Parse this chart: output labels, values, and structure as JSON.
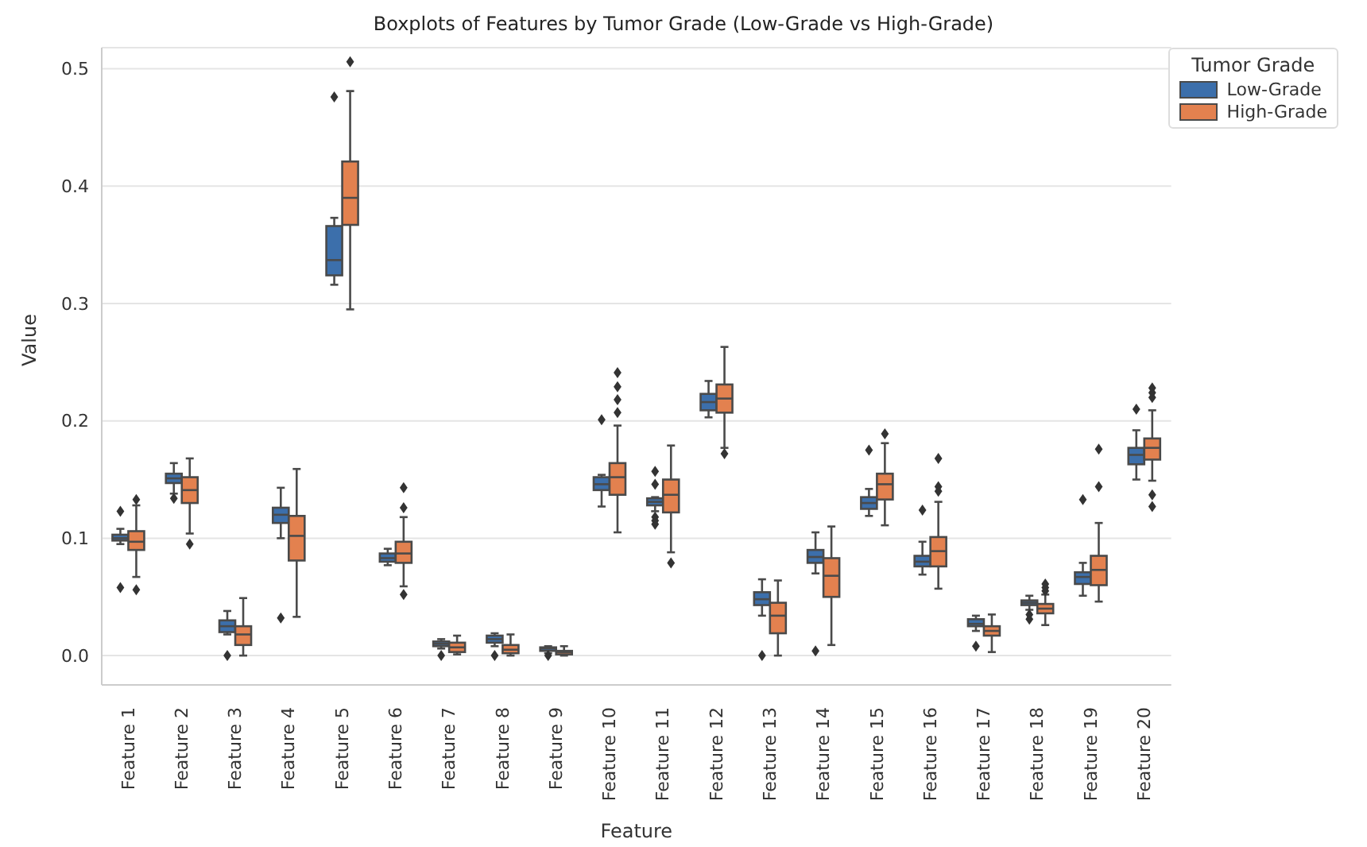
{
  "chart_data": {
    "type": "box",
    "title": "Boxplots of Features by Tumor Grade (Low-Grade vs High-Grade)",
    "xlabel": "Feature",
    "ylabel": "Value",
    "legend_title": "Tumor Grade",
    "categories": [
      "Feature 1",
      "Feature 2",
      "Feature 3",
      "Feature 4",
      "Feature 5",
      "Feature 6",
      "Feature 7",
      "Feature 8",
      "Feature 9",
      "Feature 10",
      "Feature 11",
      "Feature 12",
      "Feature 13",
      "Feature 14",
      "Feature 15",
      "Feature 16",
      "Feature 17",
      "Feature 18",
      "Feature 19",
      "Feature 20"
    ],
    "ylim": [
      -0.025,
      0.518
    ],
    "yticks": [
      {
        "value": 0,
        "label": "0.0"
      },
      0.1,
      0.2,
      0.3,
      0.4,
      0.5
    ],
    "grid": "y",
    "legend": "top right",
    "marker": "diamond",
    "series": [
      {
        "name": "Low-Grade",
        "color": "#3c6fab",
        "boxes": [
          {
            "low": 0.095,
            "q1": 0.098,
            "median": 0.1,
            "q3": 0.103,
            "high": 0.108,
            "outliers": [
              0.123,
              0.058
            ]
          },
          {
            "low": 0.138,
            "q1": 0.147,
            "median": 0.151,
            "q3": 0.155,
            "high": 0.164,
            "outliers": [
              0.134
            ]
          },
          {
            "low": 0.018,
            "q1": 0.02,
            "median": 0.025,
            "q3": 0.03,
            "high": 0.038,
            "outliers": [
              0.0
            ]
          },
          {
            "low": 0.1,
            "q1": 0.113,
            "median": 0.12,
            "q3": 0.126,
            "high": 0.143,
            "outliers": [
              0.032
            ]
          },
          {
            "low": 0.316,
            "q1": 0.324,
            "median": 0.337,
            "q3": 0.366,
            "high": 0.373,
            "outliers": [
              0.476
            ]
          },
          {
            "low": 0.077,
            "q1": 0.08,
            "median": 0.083,
            "q3": 0.087,
            "high": 0.091
          },
          {
            "low": 0.006,
            "q1": 0.008,
            "median": 0.01,
            "q3": 0.012,
            "high": 0.014,
            "outliers": [
              0.0
            ]
          },
          {
            "low": 0.008,
            "q1": 0.011,
            "median": 0.014,
            "q3": 0.017,
            "high": 0.019,
            "outliers": [
              0.0
            ]
          },
          {
            "low": 0.002,
            "q1": 0.004,
            "median": 0.006,
            "q3": 0.007,
            "high": 0.008,
            "outliers": [
              0.0
            ]
          },
          {
            "low": 0.127,
            "q1": 0.141,
            "median": 0.146,
            "q3": 0.152,
            "high": 0.154,
            "outliers": [
              0.201
            ]
          },
          {
            "low": 0.123,
            "q1": 0.128,
            "median": 0.131,
            "q3": 0.134,
            "high": 0.135,
            "outliers": [
              0.157,
              0.146,
              0.118,
              0.115,
              0.112
            ]
          },
          {
            "low": 0.203,
            "q1": 0.209,
            "median": 0.216,
            "q3": 0.223,
            "high": 0.234
          },
          {
            "low": 0.034,
            "q1": 0.043,
            "median": 0.048,
            "q3": 0.054,
            "high": 0.065,
            "outliers": [
              0.0
            ]
          },
          {
            "low": 0.07,
            "q1": 0.079,
            "median": 0.084,
            "q3": 0.09,
            "high": 0.105,
            "outliers": [
              0.004
            ]
          },
          {
            "low": 0.119,
            "q1": 0.125,
            "median": 0.13,
            "q3": 0.135,
            "high": 0.142,
            "outliers": [
              0.175
            ]
          },
          {
            "low": 0.069,
            "q1": 0.076,
            "median": 0.08,
            "q3": 0.085,
            "high": 0.097,
            "outliers": [
              0.124
            ]
          },
          {
            "low": 0.021,
            "q1": 0.025,
            "median": 0.027,
            "q3": 0.031,
            "high": 0.034,
            "outliers": [
              0.008
            ]
          },
          {
            "low": 0.039,
            "q1": 0.043,
            "median": 0.045,
            "q3": 0.047,
            "high": 0.051,
            "outliers": [
              0.031,
              0.035
            ]
          },
          {
            "low": 0.051,
            "q1": 0.061,
            "median": 0.067,
            "q3": 0.071,
            "high": 0.079,
            "outliers": [
              0.133
            ]
          },
          {
            "low": 0.15,
            "q1": 0.163,
            "median": 0.171,
            "q3": 0.177,
            "high": 0.192,
            "outliers": [
              0.21
            ]
          }
        ]
      },
      {
        "name": "High-Grade",
        "color": "#e3814f",
        "boxes": [
          {
            "low": 0.067,
            "q1": 0.09,
            "median": 0.097,
            "q3": 0.106,
            "high": 0.128,
            "outliers": [
              0.133,
              0.056
            ]
          },
          {
            "low": 0.104,
            "q1": 0.13,
            "median": 0.141,
            "q3": 0.152,
            "high": 0.168,
            "outliers": [
              0.095
            ]
          },
          {
            "low": 0.0,
            "q1": 0.009,
            "median": 0.018,
            "q3": 0.025,
            "high": 0.049
          },
          {
            "low": 0.033,
            "q1": 0.081,
            "median": 0.102,
            "q3": 0.119,
            "high": 0.159
          },
          {
            "low": 0.295,
            "q1": 0.367,
            "median": 0.39,
            "q3": 0.421,
            "high": 0.481,
            "outliers": [
              0.506
            ]
          },
          {
            "low": 0.059,
            "q1": 0.079,
            "median": 0.087,
            "q3": 0.097,
            "high": 0.118,
            "outliers": [
              0.143,
              0.126,
              0.052
            ]
          },
          {
            "low": 0.001,
            "q1": 0.003,
            "median": 0.007,
            "q3": 0.011,
            "high": 0.017
          },
          {
            "low": 0.0,
            "q1": 0.002,
            "median": 0.005,
            "q3": 0.009,
            "high": 0.018
          },
          {
            "low": 0.0,
            "q1": 0.001,
            "median": 0.003,
            "q3": 0.004,
            "high": 0.008
          },
          {
            "low": 0.105,
            "q1": 0.137,
            "median": 0.152,
            "q3": 0.164,
            "high": 0.196,
            "outliers": [
              0.207,
              0.218,
              0.229,
              0.241
            ]
          },
          {
            "low": 0.088,
            "q1": 0.122,
            "median": 0.137,
            "q3": 0.15,
            "high": 0.179,
            "outliers": [
              0.079
            ]
          },
          {
            "low": 0.177,
            "q1": 0.207,
            "median": 0.219,
            "q3": 0.231,
            "high": 0.263,
            "outliers": [
              0.172
            ]
          },
          {
            "low": 0.0,
            "q1": 0.019,
            "median": 0.034,
            "q3": 0.045,
            "high": 0.064
          },
          {
            "low": 0.009,
            "q1": 0.05,
            "median": 0.068,
            "q3": 0.083,
            "high": 0.11
          },
          {
            "low": 0.111,
            "q1": 0.133,
            "median": 0.146,
            "q3": 0.155,
            "high": 0.181,
            "outliers": [
              0.189
            ]
          },
          {
            "low": 0.057,
            "q1": 0.076,
            "median": 0.089,
            "q3": 0.101,
            "high": 0.131,
            "outliers": [
              0.168,
              0.144,
              0.14
            ]
          },
          {
            "low": 0.003,
            "q1": 0.017,
            "median": 0.021,
            "q3": 0.025,
            "high": 0.035
          },
          {
            "low": 0.026,
            "q1": 0.036,
            "median": 0.04,
            "q3": 0.044,
            "high": 0.052,
            "outliers": [
              0.055,
              0.058,
              0.061
            ]
          },
          {
            "low": 0.046,
            "q1": 0.06,
            "median": 0.073,
            "q3": 0.085,
            "high": 0.113,
            "outliers": [
              0.144,
              0.176
            ]
          },
          {
            "low": 0.149,
            "q1": 0.167,
            "median": 0.177,
            "q3": 0.185,
            "high": 0.209,
            "outliers": [
              0.22,
              0.224,
              0.228,
              0.137,
              0.127
            ]
          }
        ]
      }
    ]
  }
}
